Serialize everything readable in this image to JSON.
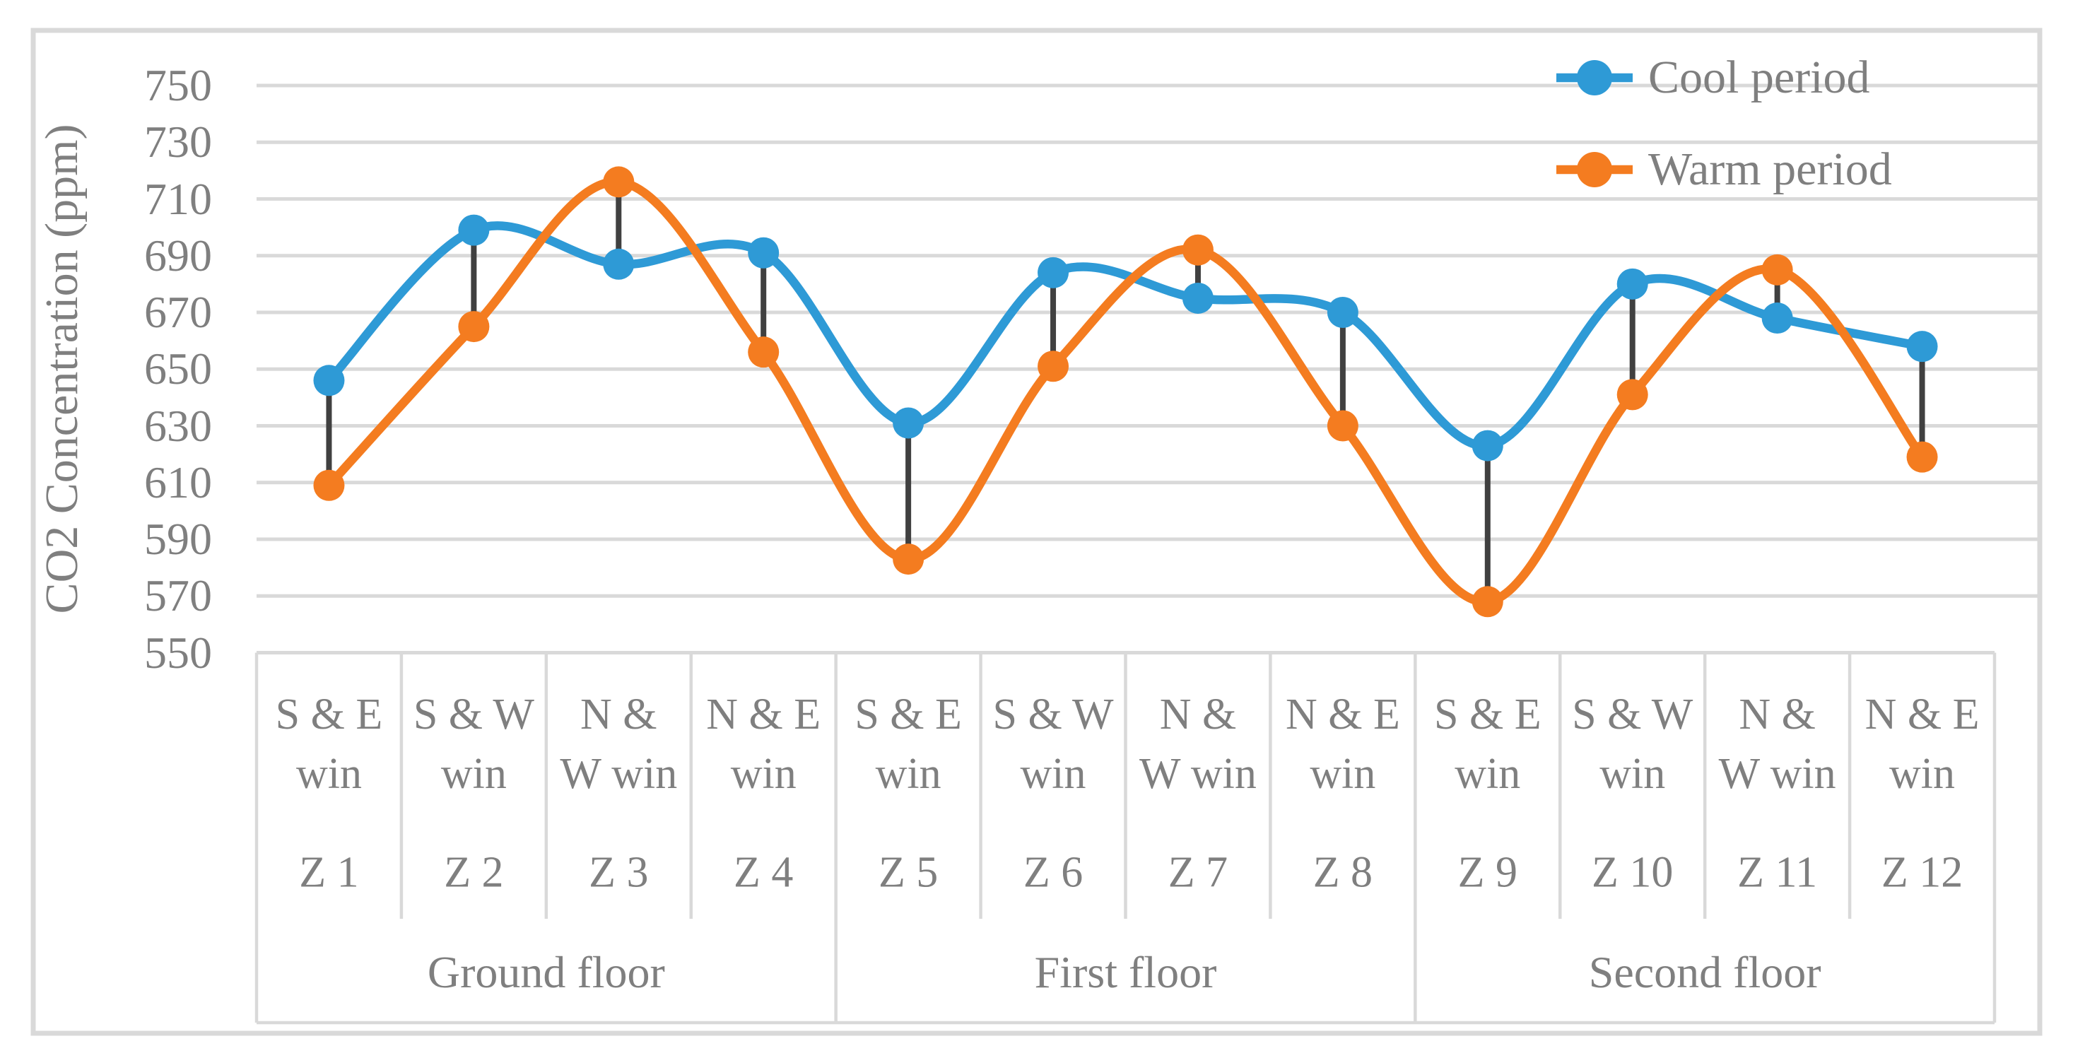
{
  "chart_data": {
    "type": "line",
    "title": "",
    "ylabel": "CO2 Concentration (ppm)",
    "xlabel": "",
    "ylim": [
      550,
      750
    ],
    "ytick_step": 20,
    "ytick_labels": [
      "750",
      "730",
      "710",
      "690",
      "670",
      "650",
      "630",
      "610",
      "590",
      "570",
      "550"
    ],
    "grid": "horizontal",
    "smooth": true,
    "marker": "circle",
    "legend_position": "top-right-inside",
    "x_windows": [
      [
        "S & E",
        "win"
      ],
      [
        "S & W",
        "win"
      ],
      [
        "N &",
        "W win"
      ],
      [
        "N & E",
        "win"
      ],
      [
        "S & E",
        "win"
      ],
      [
        "S & W",
        "win"
      ],
      [
        "N &",
        "W win"
      ],
      [
        "N & E",
        "win"
      ],
      [
        "S & E",
        "win"
      ],
      [
        "S & W",
        "win"
      ],
      [
        "N &",
        "W win"
      ],
      [
        "N & E",
        "win"
      ]
    ],
    "x_zones": [
      "Z 1",
      "Z 2",
      "Z 3",
      "Z 4",
      "Z 5",
      "Z 6",
      "Z 7",
      "Z 8",
      "Z 9",
      "Z 10",
      "Z 11",
      "Z 12"
    ],
    "x_floors": [
      {
        "label": "Ground floor",
        "span": 4
      },
      {
        "label": "First floor",
        "span": 4
      },
      {
        "label": "Second floor",
        "span": 4
      }
    ],
    "series": [
      {
        "name": "Cool period",
        "color": "#2e9ad6",
        "values": [
          646,
          699,
          687,
          691,
          631,
          684,
          675,
          670,
          623,
          680,
          668,
          658
        ]
      },
      {
        "name": "Warm period",
        "color": "#f47c20",
        "values": [
          609,
          665,
          716,
          656,
          583,
          651,
          692,
          630,
          568,
          641,
          685,
          619
        ]
      }
    ],
    "high_low_lines": {
      "enabled": true,
      "color": "#404040"
    },
    "colors": {
      "gridline": "#d9d9d9",
      "frame": "#d9d9d9",
      "table_border": "#d9d9d9",
      "text": "#7f7f7f",
      "background": "#ffffff"
    }
  }
}
